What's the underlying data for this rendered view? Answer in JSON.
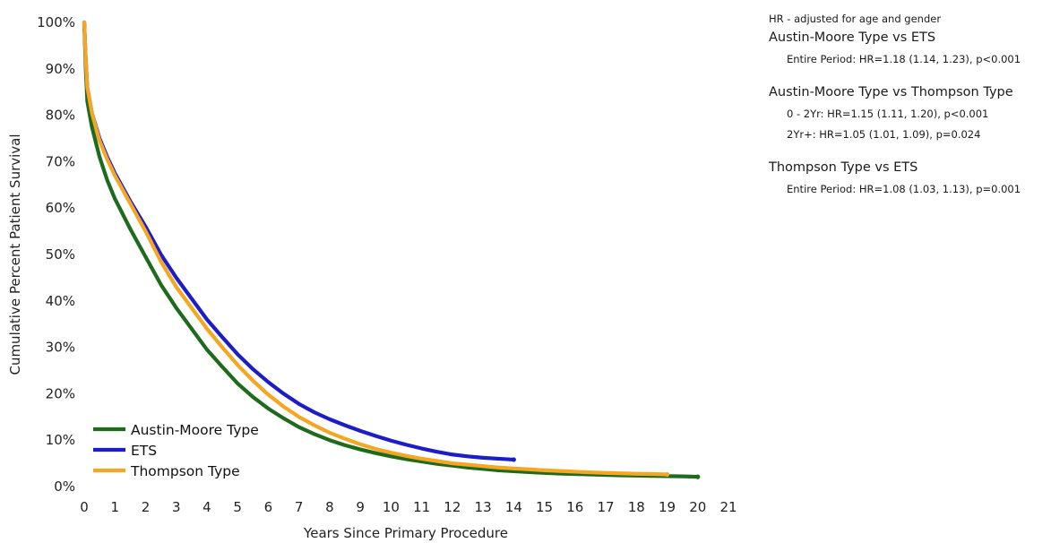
{
  "chart_data": {
    "type": "line",
    "xlabel": "Years Since Primary Procedure",
    "ylabel": "Cumulative Percent Patient Survival",
    "xlim": [
      0,
      21
    ],
    "ylim": [
      0,
      100
    ],
    "xticks": [
      "0",
      "1",
      "2",
      "3",
      "4",
      "5",
      "6",
      "7",
      "8",
      "9",
      "10",
      "11",
      "12",
      "13",
      "14",
      "15",
      "16",
      "17",
      "18",
      "19",
      "20",
      "21"
    ],
    "yticks": [
      "0%",
      "10%",
      "20%",
      "30%",
      "40%",
      "50%",
      "60%",
      "70%",
      "80%",
      "90%",
      "100%"
    ],
    "grid": false,
    "legend_position": "bottom-left",
    "series": [
      {
        "name": "Austin-Moore Type",
        "color": "#1e6b1e",
        "x": [
          0,
          0.05,
          0.1,
          0.25,
          0.5,
          0.75,
          1,
          1.5,
          2,
          2.5,
          3,
          3.5,
          4,
          4.5,
          5,
          5.5,
          6,
          6.5,
          7,
          7.5,
          8,
          8.5,
          9,
          9.5,
          10,
          10.5,
          11,
          11.5,
          12,
          12.5,
          13,
          13.5,
          14,
          14.5,
          15,
          15.5,
          16,
          16.5,
          17,
          17.5,
          18,
          18.5,
          19,
          19.5,
          20
        ],
        "y": [
          100,
          90,
          83,
          77.5,
          71,
          66,
          62,
          55.5,
          49.5,
          43.5,
          38.5,
          34,
          29.5,
          25.8,
          22.2,
          19.3,
          16.8,
          14.7,
          12.8,
          11.3,
          10.0,
          8.9,
          8.0,
          7.2,
          6.5,
          5.9,
          5.4,
          4.9,
          4.5,
          4.1,
          3.8,
          3.5,
          3.3,
          3.1,
          2.95,
          2.8,
          2.7,
          2.6,
          2.5,
          2.4,
          2.35,
          2.3,
          2.25,
          2.2,
          2.1
        ]
      },
      {
        "name": "ETS",
        "color": "#1c1cc8",
        "x": [
          0,
          0.05,
          0.1,
          0.25,
          0.5,
          0.75,
          1,
          1.5,
          2,
          2.5,
          3,
          3.5,
          4,
          4.5,
          5,
          5.5,
          6,
          6.5,
          7,
          7.5,
          8,
          8.5,
          9,
          9.5,
          10,
          10.5,
          11,
          11.5,
          12,
          12.5,
          13,
          13.5,
          14
        ],
        "y": [
          100,
          92,
          86,
          80.5,
          75,
          71,
          67.5,
          61.5,
          56,
          50,
          45,
          40.5,
          36,
          32.2,
          28.5,
          25.3,
          22.5,
          20.0,
          17.8,
          16.0,
          14.5,
          13.2,
          12.0,
          10.9,
          9.9,
          9.0,
          8.2,
          7.5,
          6.9,
          6.5,
          6.2,
          6.0,
          5.8
        ]
      },
      {
        "name": "Thompson Type",
        "color": "#f5a623",
        "x": [
          0,
          0.05,
          0.1,
          0.25,
          0.5,
          0.75,
          1,
          1.5,
          2,
          2.5,
          3,
          3.5,
          4,
          4.5,
          5,
          5.5,
          6,
          6.5,
          7,
          7.5,
          8,
          8.5,
          9,
          9.5,
          10,
          10.5,
          11,
          11.5,
          12,
          12.5,
          13,
          13.5,
          14,
          14.5,
          15,
          15.5,
          16,
          16.5,
          17,
          17.5,
          18,
          18.5,
          19
        ],
        "y": [
          100,
          92,
          86,
          80.5,
          74.5,
          70.5,
          67,
          61,
          55,
          48.5,
          43,
          38.5,
          34,
          30.0,
          26.2,
          22.8,
          19.8,
          17.2,
          15.0,
          13.2,
          11.6,
          10.3,
          9.1,
          8.1,
          7.3,
          6.6,
          6.0,
          5.5,
          5.0,
          4.7,
          4.4,
          4.1,
          3.9,
          3.7,
          3.5,
          3.35,
          3.2,
          3.05,
          2.95,
          2.85,
          2.75,
          2.7,
          2.6
        ]
      }
    ]
  },
  "notes": {
    "header": "HR - adjusted for age and gender",
    "comparisons": [
      {
        "title": "Austin-Moore Type vs ETS",
        "lines": [
          "Entire Period: HR=1.18 (1.14, 1.23), p<0.001"
        ]
      },
      {
        "title": "Austin-Moore Type vs Thompson Type",
        "lines": [
          "0 - 2Yr: HR=1.15 (1.11, 1.20), p<0.001",
          "2Yr+: HR=1.05 (1.01, 1.09), p=0.024"
        ]
      },
      {
        "title": "Thompson Type vs ETS",
        "lines": [
          "Entire Period: HR=1.08 (1.03, 1.13), p=0.001"
        ]
      }
    ]
  }
}
